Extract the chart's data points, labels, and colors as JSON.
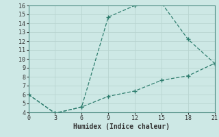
{
  "xlabel": "Humidex (Indice chaleur)",
  "background_color": "#cde8e5",
  "line_color": "#2e7d6e",
  "grid_color": "#b8d4d0",
  "xlim": [
    0,
    21
  ],
  "ylim": [
    4,
    16
  ],
  "xticks": [
    0,
    3,
    6,
    9,
    12,
    15,
    18,
    21
  ],
  "yticks": [
    4,
    5,
    6,
    7,
    8,
    9,
    10,
    11,
    12,
    13,
    14,
    15,
    16
  ],
  "line1_x": [
    0,
    3,
    6,
    9,
    12,
    15,
    18,
    21
  ],
  "line1_y": [
    6,
    3.9,
    4.6,
    14.7,
    16.0,
    16.3,
    12.2,
    9.5
  ],
  "line2_x": [
    0,
    3,
    6,
    9,
    12,
    15,
    18,
    21
  ],
  "line2_y": [
    6,
    3.9,
    4.6,
    5.8,
    6.4,
    7.6,
    8.1,
    9.5
  ],
  "spine_color": "#4a8a80",
  "tick_fontsize": 6,
  "xlabel_fontsize": 7
}
